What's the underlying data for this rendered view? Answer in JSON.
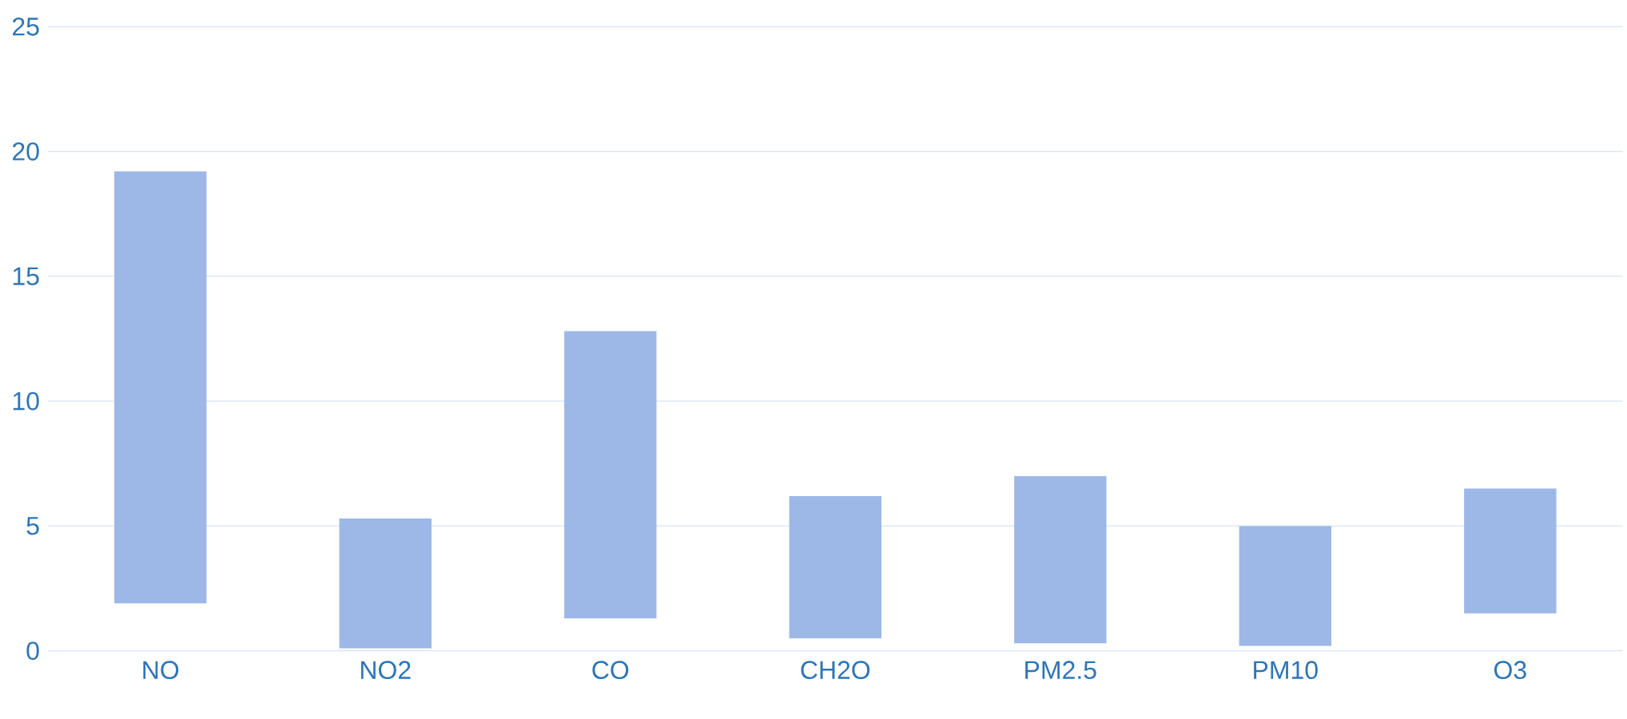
{
  "chart_data": {
    "type": "bar",
    "categories": [
      "NO",
      "NO2",
      "CO",
      "CH2O",
      "PM2.5",
      "PM10",
      "O3"
    ],
    "base": [
      1.9,
      0.1,
      1.3,
      0.5,
      0.3,
      0.2,
      1.5
    ],
    "values": [
      17.3,
      5.2,
      11.5,
      5.7,
      6.7,
      4.8,
      5.0
    ],
    "color": "#9db8e6",
    "ylim": [
      0,
      25
    ],
    "yticks": [
      0,
      5,
      10,
      15,
      20,
      25
    ],
    "grid": "y"
  }
}
